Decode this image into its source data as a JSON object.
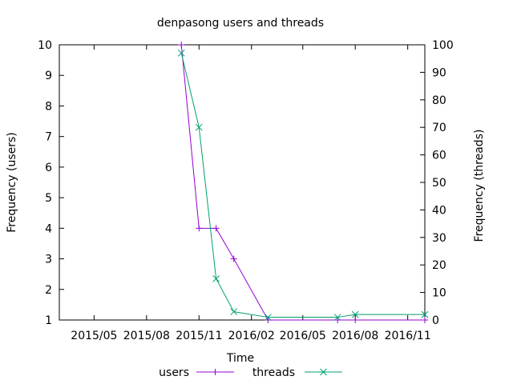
{
  "chart_data": {
    "type": "line",
    "title": "denpasong users and threads",
    "xlabel": "Time",
    "ylabel": "Frequency (users)",
    "y2label": "Frequency (threads)",
    "x_tick_labels": [
      "2015/05",
      "2015/08",
      "2015/11",
      "2016/02",
      "2016/05",
      "2016/08",
      "2016/11"
    ],
    "x_tick_dates": [
      "2015-05-01",
      "2015-08-01",
      "2015-11-01",
      "2016-02-01",
      "2016-05-01",
      "2016-08-01",
      "2016-11-01"
    ],
    "xlim": [
      "2015-03-01",
      "2016-12-01"
    ],
    "ylim": [
      1,
      10
    ],
    "y2lim": [
      0,
      100
    ],
    "y_ticks": [
      1,
      2,
      3,
      4,
      5,
      6,
      7,
      8,
      9,
      10
    ],
    "y2_ticks": [
      0,
      10,
      20,
      30,
      40,
      50,
      60,
      70,
      80,
      90,
      100
    ],
    "legend_position": "bottom-center",
    "grid": false,
    "series": [
      {
        "name": "users",
        "axis": "y",
        "color": "#9400d3",
        "marker": "plus",
        "points": [
          {
            "x": "2015-10-01",
            "y": 10
          },
          {
            "x": "2015-11-01",
            "y": 4
          },
          {
            "x": "2015-12-01",
            "y": 4
          },
          {
            "x": "2016-01-01",
            "y": 3
          },
          {
            "x": "2016-03-01",
            "y": 1
          },
          {
            "x": "2016-07-01",
            "y": 1
          },
          {
            "x": "2016-08-01",
            "y": 1
          },
          {
            "x": "2016-12-01",
            "y": 1
          }
        ]
      },
      {
        "name": "threads",
        "axis": "y2",
        "color": "#009e73",
        "marker": "cross",
        "points": [
          {
            "x": "2015-10-01",
            "y": 97
          },
          {
            "x": "2015-11-01",
            "y": 70
          },
          {
            "x": "2015-12-01",
            "y": 15
          },
          {
            "x": "2016-01-01",
            "y": 3
          },
          {
            "x": "2016-03-01",
            "y": 1
          },
          {
            "x": "2016-07-01",
            "y": 1
          },
          {
            "x": "2016-08-01",
            "y": 2
          },
          {
            "x": "2016-12-01",
            "y": 2
          }
        ]
      }
    ]
  }
}
